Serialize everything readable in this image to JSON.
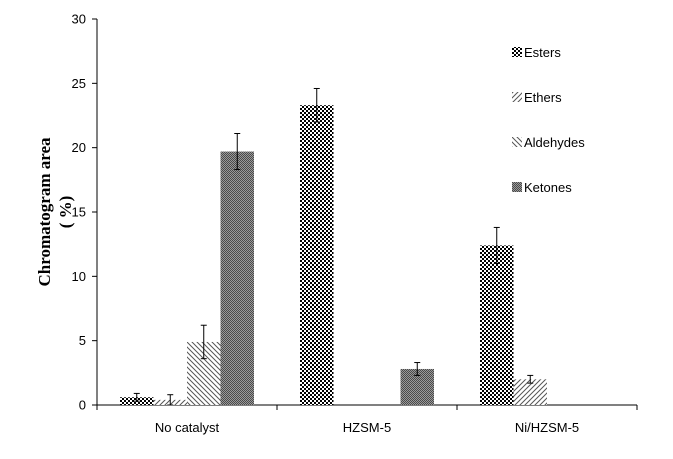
{
  "chart_data": {
    "type": "bar",
    "title": "",
    "xlabel": "",
    "ylabel_line1": "Chromatogram area",
    "ylabel_line2": "( %)",
    "ylim": [
      0,
      30
    ],
    "yticks": [
      0,
      5,
      10,
      15,
      20,
      25,
      30
    ],
    "categories": [
      "No catalyst",
      "HZSM-5",
      "Ni/HZSM-5"
    ],
    "series": [
      {
        "name": "Esters",
        "pattern": "checker",
        "values": [
          0.6,
          23.3,
          12.4
        ],
        "errors": [
          0.3,
          1.3,
          1.4
        ]
      },
      {
        "name": "Ethers",
        "pattern": "diag-up",
        "values": [
          0.4,
          0,
          2.0
        ],
        "errors": [
          0.4,
          0,
          0.3
        ]
      },
      {
        "name": "Aldehydes",
        "pattern": "diag-down",
        "values": [
          4.9,
          0,
          0
        ],
        "errors": [
          1.3,
          0,
          0
        ]
      },
      {
        "name": "Ketones",
        "pattern": "dense-checker",
        "values": [
          19.7,
          2.8,
          0
        ],
        "errors": [
          1.4,
          0.5,
          0
        ]
      }
    ],
    "legend_position": "top-right",
    "grid": false
  }
}
